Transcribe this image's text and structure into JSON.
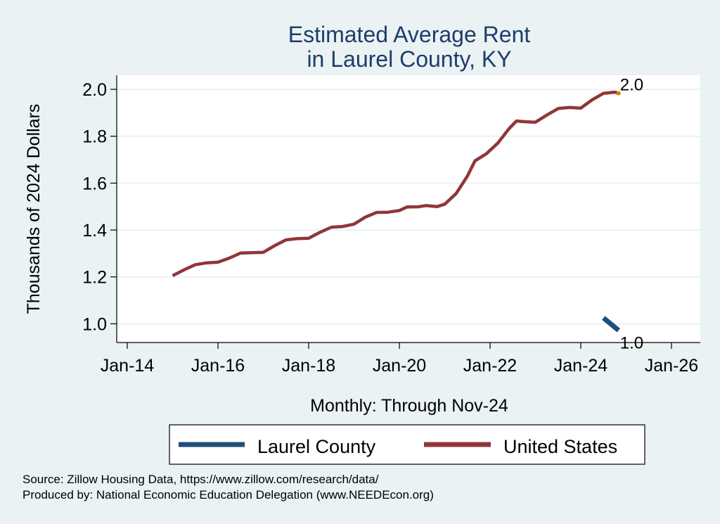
{
  "chart_data": {
    "type": "line",
    "title": [
      "Estimated Average Rent",
      "in Laurel County, KY"
    ],
    "xlabel": "Monthly: Through Nov-24",
    "ylabel": "Thousands of 2024 Dollars",
    "xlim": [
      "2014-01",
      "2026-01"
    ],
    "ylim": [
      0.92,
      2.06
    ],
    "x_ticks": [
      "Jan-14",
      "Jan-16",
      "Jan-18",
      "Jan-20",
      "Jan-22",
      "Jan-24",
      "Jan-26"
    ],
    "y_ticks": [
      "1.0",
      "1.2",
      "1.4",
      "1.6",
      "1.8",
      "2.0"
    ],
    "grid": true,
    "legend_position": "bottom",
    "series": [
      {
        "name": "Laurel County",
        "color": "#1f4e79",
        "points": [
          [
            "2024-07",
            1.025
          ],
          [
            "2024-11",
            0.972
          ]
        ],
        "end_label": "1.0"
      },
      {
        "name": "United States",
        "color": "#903638",
        "points": [
          [
            "2015-01",
            1.205
          ],
          [
            "2015-04",
            1.23
          ],
          [
            "2015-07",
            1.252
          ],
          [
            "2015-10",
            1.26
          ],
          [
            "2016-01",
            1.263
          ],
          [
            "2016-04",
            1.28
          ],
          [
            "2016-07",
            1.302
          ],
          [
            "2016-10",
            1.303
          ],
          [
            "2017-01",
            1.305
          ],
          [
            "2017-04",
            1.333
          ],
          [
            "2017-07",
            1.358
          ],
          [
            "2017-10",
            1.363
          ],
          [
            "2018-01",
            1.365
          ],
          [
            "2018-04",
            1.39
          ],
          [
            "2018-07",
            1.412
          ],
          [
            "2018-10",
            1.415
          ],
          [
            "2019-01",
            1.425
          ],
          [
            "2019-04",
            1.455
          ],
          [
            "2019-07",
            1.475
          ],
          [
            "2019-10",
            1.476
          ],
          [
            "2020-01",
            1.483
          ],
          [
            "2020-03",
            1.498
          ],
          [
            "2020-06",
            1.499
          ],
          [
            "2020-08",
            1.504
          ],
          [
            "2020-11",
            1.5
          ],
          [
            "2021-01",
            1.51
          ],
          [
            "2021-04",
            1.555
          ],
          [
            "2021-07",
            1.63
          ],
          [
            "2021-09",
            1.695
          ],
          [
            "2021-12",
            1.725
          ],
          [
            "2022-03",
            1.77
          ],
          [
            "2022-06",
            1.832
          ],
          [
            "2022-08",
            1.865
          ],
          [
            "2022-10",
            1.862
          ],
          [
            "2023-01",
            1.86
          ],
          [
            "2023-04",
            1.89
          ],
          [
            "2023-07",
            1.918
          ],
          [
            "2023-10",
            1.923
          ],
          [
            "2024-01",
            1.92
          ],
          [
            "2024-04",
            1.955
          ],
          [
            "2024-07",
            1.983
          ],
          [
            "2024-10",
            1.988
          ],
          [
            "2024-11",
            1.983
          ]
        ],
        "end_label": "2.0"
      }
    ],
    "footnotes": [
      "Source: Zillow Housing Data, https://www.zillow.com/research/data/",
      "Produced by: National Economic Education Delegation (www.NEEDEcon.org)"
    ]
  }
}
